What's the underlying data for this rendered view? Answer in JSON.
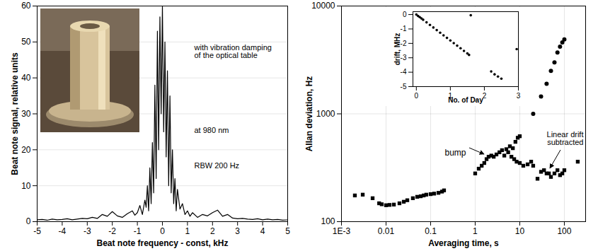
{
  "chart_data": [
    {
      "type": "line",
      "x_label": "Beat note frequency - const, kHz",
      "y_label": "Beat note signal, relative units",
      "annotations": [
        "with vibration damping of the optical table",
        "at 980 nm",
        "RBW 200 Hz"
      ],
      "x": [
        -5,
        -4.8,
        -4.6,
        -4.4,
        -4.2,
        -4,
        -3.8,
        -3.6,
        -3.4,
        -3.2,
        -3,
        -2.8,
        -2.6,
        -2.4,
        -2.2,
        -2,
        -1.8,
        -1.6,
        -1.4,
        -1.2,
        -1.1,
        -1,
        -0.9,
        -0.8,
        -0.7,
        -0.65,
        -0.6,
        -0.55,
        -0.5,
        -0.45,
        -0.4,
        -0.35,
        -0.3,
        -0.25,
        -0.2,
        -0.15,
        -0.1,
        -0.05,
        0,
        0.05,
        0.1,
        0.15,
        0.2,
        0.25,
        0.3,
        0.35,
        0.4,
        0.45,
        0.5,
        0.55,
        0.6,
        0.7,
        0.8,
        0.9,
        1,
        1.1,
        1.2,
        1.4,
        1.6,
        1.8,
        2,
        2.2,
        2.4,
        2.6,
        2.8,
        3,
        3.2,
        3.4,
        3.6,
        3.8,
        4,
        4.2,
        4.4,
        4.6,
        4.8,
        5
      ],
      "values": [
        0.5,
        0.6,
        0.4,
        0.7,
        0.5,
        0.6,
        0.8,
        0.5,
        0.7,
        0.9,
        0.8,
        1.2,
        0.9,
        2,
        1.5,
        2.8,
        1.6,
        1.2,
        2.2,
        3,
        1.8,
        2.5,
        4.5,
        2,
        6,
        4,
        10,
        3,
        15,
        5,
        22,
        8,
        38,
        12,
        53,
        20,
        57,
        30,
        60,
        25,
        50,
        18,
        42,
        10,
        35,
        8,
        20,
        5,
        12,
        3,
        9,
        3.5,
        5,
        2,
        3,
        1.5,
        2.5,
        1.2,
        2,
        1.6,
        2.5,
        3.2,
        1.5,
        2,
        1,
        0.8,
        0.9,
        0.7,
        0.6,
        0.8,
        0.5,
        0.7,
        0.5,
        0.6,
        0.4,
        0.5
      ],
      "color": "#000000",
      "xlim": [
        -5,
        5
      ],
      "xticks": [
        -5,
        -4,
        -3,
        -2,
        -1,
        0,
        1,
        2,
        3,
        4,
        5
      ],
      "ylim": [
        0,
        60
      ],
      "yticks": [
        0,
        10,
        20,
        30,
        40,
        50,
        60
      ],
      "grid": "y"
    },
    {
      "type": "scatter",
      "x_label": "Averaging time, s",
      "y_label": "Allan deviation, Hz",
      "annotations": [
        "bump",
        "Linear drift subtracted"
      ],
      "log": true,
      "grid": true,
      "xlim": [
        0.001,
        300
      ],
      "xticks": [
        {
          "value": 0.001,
          "label": "1E-3"
        },
        0.01,
        0.1,
        1,
        10,
        100
      ],
      "ylim": [
        100,
        10000
      ],
      "yticks": [
        100,
        1000,
        10000
      ],
      "series": [
        {
          "marker": "square",
          "color": "#000000",
          "x": [
            0.002,
            0.003,
            0.005,
            0.007,
            0.008,
            0.01,
            0.012,
            0.015,
            0.02,
            0.025,
            0.03,
            0.04,
            0.05,
            0.06,
            0.07,
            0.08,
            0.1,
            0.12,
            0.15,
            0.18,
            0.2,
            1,
            1.2,
            1.4,
            1.6,
            1.8,
            2,
            2.3,
            2.6,
            3,
            3.5,
            4,
            4.5,
            5,
            5.5,
            6,
            6.5,
            7,
            7.5,
            8,
            8.5,
            9,
            10,
            10,
            12,
            15,
            18,
            20,
            25,
            30,
            35,
            40,
            45,
            50,
            60,
            70,
            80,
            90,
            100,
            200
          ],
          "values": [
            175,
            178,
            165,
            148,
            145,
            142,
            143,
            144,
            148,
            153,
            158,
            165,
            170,
            172,
            175,
            178,
            180,
            182,
            185,
            190,
            195,
            280,
            310,
            330,
            350,
            380,
            400,
            410,
            400,
            420,
            440,
            460,
            410,
            470,
            440,
            500,
            400,
            480,
            380,
            550,
            360,
            600,
            620,
            350,
            330,
            340,
            360,
            330,
            250,
            290,
            300,
            280,
            280,
            260,
            280,
            300,
            270,
            280,
            300,
            360
          ]
        },
        {
          "marker": "circle",
          "color": "#000000",
          "x": [
            20,
            30,
            40,
            50,
            60,
            70,
            80,
            90,
            100
          ],
          "values": [
            1000,
            1450,
            1900,
            2500,
            3000,
            3700,
            4200,
            4600,
            4900
          ]
        }
      ]
    },
    {
      "type": "scatter",
      "x_label": "No. of Day",
      "y_label": "drift, MHz",
      "marker": "circle",
      "color": "#000000",
      "x": [
        0,
        0.05,
        0.1,
        0.15,
        0.2,
        0.3,
        0.4,
        0.5,
        0.6,
        0.7,
        0.8,
        0.9,
        1,
        1.1,
        1.2,
        1.3,
        1.4,
        1.5,
        1.55,
        1.6,
        2.2,
        2.3,
        2.4,
        2.5,
        2.95
      ],
      "values": [
        0,
        -0.1,
        -0.18,
        -0.27,
        -0.36,
        -0.54,
        -0.72,
        -0.9,
        -1.08,
        -1.26,
        -1.44,
        -1.62,
        -1.8,
        -1.98,
        -2.16,
        -2.34,
        -2.52,
        -2.7,
        -2.8,
        -0.05,
        -3.95,
        -4.15,
        -4.3,
        -4.45,
        -2.4
      ],
      "xlim": [
        -0.1,
        3
      ],
      "xticks": [
        0,
        1,
        2,
        3
      ],
      "ylim": [
        -5,
        0.2
      ],
      "yticks": [
        0,
        -1,
        -2,
        -3,
        -4,
        -5
      ]
    }
  ]
}
